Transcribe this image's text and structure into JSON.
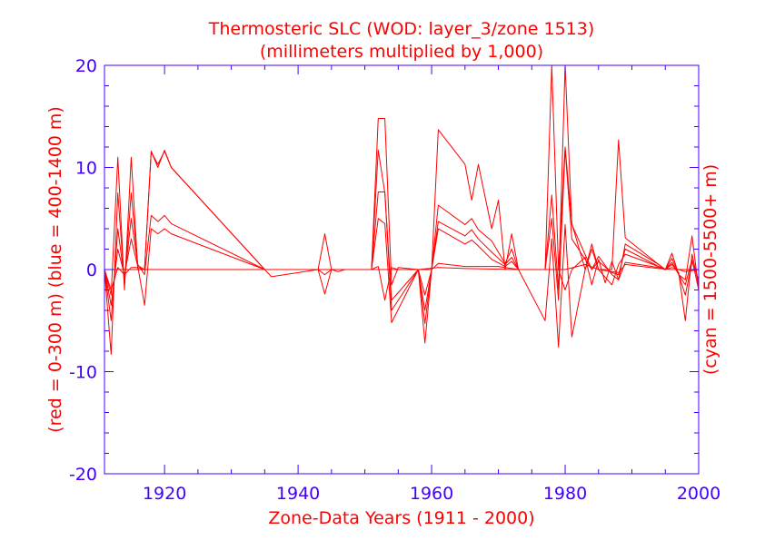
{
  "chart_data": {
    "type": "line",
    "title": "Thermosteric SLC (WOD: layer_3/zone 1513)",
    "subtitle": "(millimeters multiplied by 1,000)",
    "xlabel": "Zone-Data Years (1911 - 2000)",
    "ylabel_left": "(red = 0-300 m)  (blue = 400-1400 m)",
    "ylabel_right": "(cyan = 1500-5500+ m)",
    "xlim": [
      1911,
      2000
    ],
    "ylim": [
      -20,
      20
    ],
    "x_ticks": [
      1920,
      1940,
      1960,
      1980,
      2000
    ],
    "y_ticks": [
      -20,
      -10,
      0,
      10,
      20
    ],
    "grid": false,
    "series_color": "#ff0000",
    "axis_color": "#4400ff",
    "series": [
      {
        "x": [
          1911,
          1912,
          1913,
          1914,
          1915,
          1916,
          1917,
          1918,
          1919,
          1920,
          1921,
          1935,
          1936,
          1943,
          1944,
          1945,
          1951,
          1952,
          1953,
          1954,
          1955,
          1958,
          1959,
          1960,
          1961,
          1965,
          1966,
          1967,
          1969,
          1970,
          1971,
          1972,
          1973,
          1974,
          1977,
          1978,
          1979,
          1980,
          1981,
          1983,
          1984,
          1985,
          1987,
          1988,
          1989,
          1994,
          1995,
          1996,
          1997,
          1998,
          1999,
          2000
        ],
        "y": [
          0,
          -2.5,
          11,
          -2,
          11,
          0,
          0,
          11.6,
          10,
          11.7,
          10,
          0,
          0,
          0,
          3.5,
          0,
          0,
          14.8,
          14.8,
          -1.5,
          0.2,
          0,
          0,
          0,
          13.7,
          10.3,
          6.8,
          10.3,
          4.0,
          6.8,
          0,
          3.5,
          0,
          0,
          0,
          21,
          0,
          12,
          4.5,
          0,
          2.5,
          0,
          0,
          12.7,
          3.1,
          0.5,
          0,
          1.6,
          -0.5,
          -1.0,
          3.3,
          -2.0
        ]
      },
      {
        "x": [
          1911,
          1912,
          1913,
          1914,
          1915,
          1916,
          1917,
          1918,
          1919,
          1920,
          1921,
          1935,
          1951,
          1952,
          1953,
          1954,
          1958,
          1959,
          1960,
          1961,
          1965,
          1966,
          1967,
          1969,
          1971,
          1972,
          1973,
          1977,
          1978,
          1979,
          1980,
          1981,
          1984,
          1985,
          1987,
          1988,
          1989,
          1994,
          1995,
          1996,
          1997,
          1998,
          1999,
          2000
        ],
        "y": [
          0,
          -8.3,
          7.5,
          -1.5,
          7.5,
          0.4,
          0,
          11.5,
          10.3,
          11.6,
          10,
          0,
          0,
          11.7,
          7.5,
          -3.0,
          0,
          -4.0,
          0,
          6.3,
          4.4,
          5.0,
          3.9,
          2.8,
          0.6,
          2.0,
          0,
          0,
          7.3,
          -2.0,
          20,
          4.4,
          0,
          1.3,
          -0.5,
          -1.0,
          2.5,
          0.5,
          0,
          1.1,
          -0.5,
          -1.5,
          1.0,
          -2.0
        ]
      },
      {
        "x": [
          1911,
          1912,
          1913,
          1914,
          1915,
          1916,
          1917,
          1918,
          1919,
          1920,
          1921,
          1935,
          1951,
          1952,
          1953,
          1954,
          1958,
          1959,
          1960,
          1961,
          1965,
          1966,
          1967,
          1969,
          1971,
          1972,
          1973,
          1977,
          1978,
          1979,
          1980,
          1981,
          1984,
          1985,
          1987,
          1988,
          1989,
          1994,
          1995,
          1996,
          1997,
          1998,
          1999,
          2000
        ],
        "y": [
          0,
          -5.0,
          4.0,
          -1.0,
          5.0,
          0.5,
          -0.5,
          5.3,
          4.7,
          5.3,
          4.5,
          0,
          0,
          7.6,
          7.6,
          -4.0,
          0,
          -5.3,
          0,
          4.7,
          3.3,
          3.9,
          3.0,
          1.7,
          0.5,
          1.2,
          0,
          0,
          5.0,
          -3.0,
          11.8,
          3.0,
          0,
          0.8,
          -0.3,
          -0.5,
          2.0,
          0.3,
          0,
          0.7,
          -0.5,
          -2.5,
          0.8,
          -1.0
        ]
      },
      {
        "x": [
          1911,
          1912,
          1913,
          1914,
          1915,
          1916,
          1917,
          1918,
          1919,
          1920,
          1921,
          1935,
          1951,
          1952,
          1953,
          1954,
          1958,
          1959,
          1960,
          1961,
          1965,
          1966,
          1967,
          1969,
          1971,
          1972,
          1973,
          1977,
          1978,
          1979,
          1980,
          1981,
          1983,
          1984,
          1985,
          1987,
          1988,
          1989,
          1994,
          1995,
          1996,
          1997,
          1998,
          1999,
          2000
        ],
        "y": [
          0,
          -3.5,
          2.0,
          -0.5,
          3.0,
          0.3,
          -3.5,
          4.0,
          3.5,
          4.0,
          3.5,
          0,
          0,
          5.0,
          4.5,
          -5.2,
          0,
          -7.2,
          0,
          4.0,
          2.5,
          2.9,
          2.3,
          1.0,
          0.3,
          0.8,
          0,
          -5.0,
          3.0,
          -7.6,
          4.4,
          -6.6,
          0,
          2.0,
          0,
          -1.5,
          0.5,
          1.5,
          0.3,
          0,
          0.5,
          -0.3,
          -5.0,
          1.5,
          -1.5
        ]
      },
      {
        "x": [
          1911,
          1912,
          1913,
          1914,
          1915,
          1916,
          1917,
          1918,
          1935,
          1936,
          1943,
          1944,
          1945,
          1946,
          1947,
          1951,
          1952,
          1953,
          1954,
          1955,
          1956,
          1958,
          1959,
          1960,
          1961,
          1965,
          1970,
          1973,
          1977,
          1978,
          1979,
          1980,
          1981,
          1983,
          1984,
          1985,
          1986,
          1987,
          1988,
          1989,
          1994,
          1995,
          1996,
          1997,
          1998,
          2000
        ],
        "y": [
          0,
          -2.0,
          0.2,
          -0.5,
          0.2,
          0.2,
          0,
          0,
          0,
          -0.7,
          0,
          -2.4,
          0,
          -0.2,
          0,
          0,
          0.3,
          -3.0,
          0.2,
          0,
          0,
          0,
          -2.5,
          0,
          0.6,
          0.3,
          0.3,
          0,
          0,
          0,
          0,
          -2.0,
          0,
          1.2,
          -1.5,
          1.0,
          -1.3,
          0.8,
          -1.0,
          0.7,
          0.2,
          0,
          0.2,
          0,
          -0.2,
          0
        ]
      },
      {
        "x": [
          1911,
          1935,
          1943,
          1944,
          1945,
          1951,
          1952,
          1953,
          1954,
          1958,
          1961,
          1965,
          1973,
          1977,
          1980,
          1983,
          1985,
          1988,
          1989,
          1994,
          1996,
          1998,
          2000
        ],
        "y": [
          0,
          0,
          0,
          -0.5,
          0,
          0,
          0,
          0,
          0,
          0,
          0.2,
          0.1,
          0,
          0,
          0,
          0.5,
          0,
          -0.3,
          0.5,
          0.1,
          0,
          0,
          0
        ]
      }
    ]
  }
}
